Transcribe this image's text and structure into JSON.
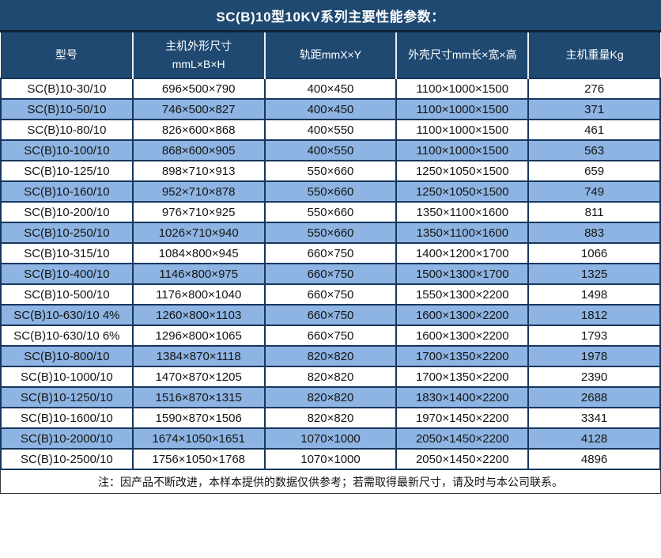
{
  "title": "SC(B)10型10KV系列主要性能参数：",
  "table": {
    "columns": [
      "型号",
      "主机外形尺寸\nmmL×B×H",
      "轨距mmX×Y",
      "外壳尺寸mm长×宽×高",
      "主机重量Kg"
    ],
    "rows": [
      [
        "SC(B)10-30/10",
        "696×500×790",
        "400×450",
        "1100×1000×1500",
        "276"
      ],
      [
        "SC(B)10-50/10",
        "746×500×827",
        "400×450",
        "1100×1000×1500",
        "371"
      ],
      [
        "SC(B)10-80/10",
        "826×600×868",
        "400×550",
        "1100×1000×1500",
        "461"
      ],
      [
        "SC(B)10-100/10",
        "868×600×905",
        "400×550",
        "1100×1000×1500",
        "563"
      ],
      [
        "SC(B)10-125/10",
        "898×710×913",
        "550×660",
        "1250×1050×1500",
        "659"
      ],
      [
        "SC(B)10-160/10",
        "952×710×878",
        "550×660",
        "1250×1050×1500",
        "749"
      ],
      [
        "SC(B)10-200/10",
        "976×710×925",
        "550×660",
        "1350×1100×1600",
        "811"
      ],
      [
        "SC(B)10-250/10",
        "1026×710×940",
        "550×660",
        "1350×1100×1600",
        "883"
      ],
      [
        "SC(B)10-315/10",
        "1084×800×945",
        "660×750",
        "1400×1200×1700",
        "1066"
      ],
      [
        "SC(B)10-400/10",
        "1146×800×975",
        "660×750",
        "1500×1300×1700",
        "1325"
      ],
      [
        "SC(B)10-500/10",
        "1176×800×1040",
        "660×750",
        "1550×1300×2200",
        "1498"
      ],
      [
        "SC(B)10-630/10 4%",
        "1260×800×1103",
        "660×750",
        "1600×1300×2200",
        "1812"
      ],
      [
        "SC(B)10-630/10 6%",
        "1296×800×1065",
        "660×750",
        "1600×1300×2200",
        "1793"
      ],
      [
        "SC(B)10-800/10",
        "1384×870×1118",
        "820×820",
        "1700×1350×2200",
        "1978"
      ],
      [
        "SC(B)10-1000/10",
        "1470×870×1205",
        "820×820",
        "1700×1350×2200",
        "2390"
      ],
      [
        "SC(B)10-1250/10",
        "1516×870×1315",
        "820×820",
        "1830×1400×2200",
        "2688"
      ],
      [
        "SC(B)10-1600/10",
        "1590×870×1506",
        "820×820",
        "1970×1450×2200",
        "3341"
      ],
      [
        "SC(B)10-2000/10",
        "1674×1050×1651",
        "1070×1000",
        "2050×1450×2200",
        "4128"
      ],
      [
        "SC(B)10-2500/10",
        "1756×1050×1768",
        "1070×1000",
        "2050×1450×2200",
        "4896"
      ]
    ]
  },
  "note": "注：因产品不断改进，本样本提供的数据仅供参考；若需取得最新尺寸，请及时与本公司联系。",
  "colors": {
    "header_bg": "#1F4971",
    "alt_row_bg": "#8DB4E2",
    "grid_border": "#17375E",
    "header_text": "#ffffff",
    "body_text": "#141414"
  }
}
